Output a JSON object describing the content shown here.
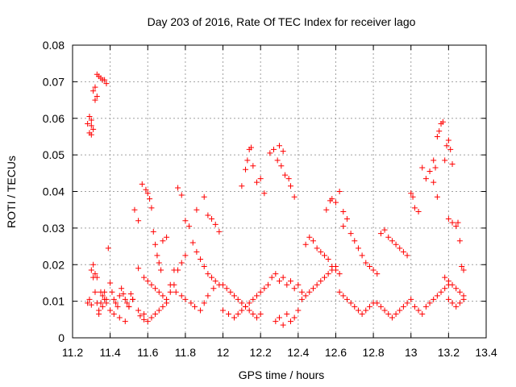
{
  "chart_data": {
    "type": "scatter",
    "title": "Day 203 of 2016, Rate Of TEC Index for receiver lago",
    "xlabel": "GPS time / hours",
    "ylabel": "ROTI / TECUs",
    "xlim": [
      11.2,
      13.4
    ],
    "ylim": [
      0,
      0.08
    ],
    "x_ticks": [
      "11.2",
      "11.4",
      "11.6",
      "11.8",
      "12",
      "12.2",
      "12.4",
      "12.6",
      "12.8",
      "13",
      "13.2",
      "13.4"
    ],
    "y_ticks": [
      "0",
      "0.01",
      "0.02",
      "0.03",
      "0.04",
      "0.05",
      "0.06",
      "0.07",
      "0.08"
    ],
    "grid": true,
    "marker": "+",
    "color": "#ff0000",
    "series": [
      {
        "name": "ROTI",
        "x": [
          11.28,
          11.29,
          11.3,
          11.3,
          11.31,
          11.31,
          11.32,
          11.32,
          11.33,
          11.33,
          11.34,
          11.34,
          11.35,
          11.35,
          11.36,
          11.36,
          11.37,
          11.37,
          11.38,
          11.38,
          11.31,
          11.32,
          11.33,
          11.34,
          11.35,
          11.36,
          11.37,
          11.38,
          11.33,
          11.32,
          11.28,
          11.29,
          11.3,
          11.29,
          11.3,
          11.31,
          11.3,
          11.39,
          11.4,
          11.41,
          11.42,
          11.43,
          11.44,
          11.45,
          11.46,
          11.47,
          11.48,
          11.49,
          11.5,
          11.51,
          11.52,
          11.4,
          11.42,
          11.45,
          11.48,
          11.5,
          11.52,
          11.55,
          11.58,
          11.53,
          11.55,
          11.57,
          11.59,
          11.6,
          11.61,
          11.62,
          11.63,
          11.64,
          11.65,
          11.66,
          11.67,
          11.68,
          11.7,
          11.55,
          11.58,
          11.6,
          11.62,
          11.64,
          11.66,
          11.68,
          11.7,
          11.72,
          11.74,
          11.56,
          11.58,
          11.6,
          11.62,
          11.64,
          11.66,
          11.68,
          11.7,
          11.72,
          11.74,
          11.76,
          11.78,
          11.8,
          11.82,
          11.84,
          11.86,
          11.88,
          11.9,
          11.92,
          11.94,
          11.96,
          11.98,
          11.75,
          11.78,
          11.8,
          11.83,
          11.85,
          11.88,
          11.9,
          11.92,
          11.95,
          11.76,
          11.78,
          11.8,
          11.86,
          11.9,
          11.92,
          11.94,
          11.96,
          11.98,
          12.0,
          12.02,
          12.04,
          12.06,
          12.08,
          12.1,
          12.12,
          12.14,
          12.16,
          12.18,
          12.2,
          12.22,
          12.24,
          12.0,
          12.03,
          12.06,
          12.08,
          12.1,
          12.12,
          12.14,
          12.16,
          12.18,
          12.2,
          12.1,
          12.12,
          12.13,
          12.14,
          12.15,
          12.16,
          12.18,
          12.2,
          12.22,
          12.25,
          12.27,
          12.29,
          12.3,
          12.31,
          12.32,
          12.33,
          12.35,
          12.36,
          12.38,
          12.26,
          12.28,
          12.3,
          12.32,
          12.34,
          12.36,
          12.38,
          12.4,
          12.42,
          12.28,
          12.3,
          12.32,
          12.34,
          12.36,
          12.38,
          12.4,
          12.42,
          12.44,
          12.46,
          12.48,
          12.5,
          12.52,
          12.54,
          12.56,
          12.58,
          12.6,
          12.44,
          12.46,
          12.48,
          12.5,
          12.52,
          12.54,
          12.56,
          12.58,
          12.6,
          12.62,
          12.55,
          12.57,
          12.58,
          12.6,
          12.62,
          12.64,
          12.62,
          12.64,
          12.66,
          12.68,
          12.7,
          12.72,
          12.74,
          12.76,
          12.78,
          12.8,
          12.64,
          12.66,
          12.68,
          12.7,
          12.72,
          12.74,
          12.76,
          12.78,
          12.8,
          12.82,
          12.82,
          12.84,
          12.86,
          12.88,
          12.9,
          12.92,
          12.94,
          12.96,
          12.98,
          13.0,
          12.84,
          12.86,
          12.88,
          12.9,
          12.92,
          12.94,
          12.96,
          12.98,
          13.0,
          13.01,
          13.02,
          13.04,
          13.06,
          13.08,
          13.1,
          13.12,
          13.14,
          13.02,
          13.04,
          13.06,
          13.08,
          13.1,
          13.12,
          13.14,
          13.16,
          13.18,
          13.2,
          13.12,
          13.13,
          13.14,
          13.15,
          13.16,
          13.17,
          13.18,
          13.19,
          13.2,
          13.21,
          13.22,
          13.2,
          13.22,
          13.24,
          13.25,
          13.26,
          13.27,
          13.28,
          13.18,
          13.2,
          13.22,
          13.24,
          13.26,
          13.28,
          13.2,
          13.22,
          13.24,
          13.26,
          13.28
        ],
        "y": [
          0.0095,
          0.0105,
          0.009,
          0.0185,
          0.02,
          0.0165,
          0.0175,
          0.0125,
          0.0095,
          0.0165,
          0.0075,
          0.0065,
          0.0125,
          0.0095,
          0.0115,
          0.0085,
          0.0125,
          0.0105,
          0.0095,
          0.0105,
          0.0675,
          0.065,
          0.072,
          0.0715,
          0.071,
          0.0705,
          0.0705,
          0.0695,
          0.066,
          0.0685,
          0.0585,
          0.0605,
          0.058,
          0.056,
          0.0595,
          0.057,
          0.0555,
          0.0245,
          0.015,
          0.0125,
          0.0105,
          0.0095,
          0.0085,
          0.0115,
          0.0135,
          0.012,
          0.0105,
          0.0095,
          0.0085,
          0.012,
          0.0105,
          0.0075,
          0.0065,
          0.0055,
          0.0045,
          0.0085,
          0.0105,
          0.0075,
          0.0065,
          0.035,
          0.032,
          0.042,
          0.0405,
          0.0395,
          0.038,
          0.0355,
          0.029,
          0.0255,
          0.0225,
          0.0205,
          0.0185,
          0.0265,
          0.0275,
          0.019,
          0.0165,
          0.0155,
          0.0145,
          0.0135,
          0.0125,
          0.0115,
          0.0105,
          0.0125,
          0.0145,
          0.006,
          0.005,
          0.0045,
          0.0055,
          0.0065,
          0.0075,
          0.0085,
          0.0095,
          0.0145,
          0.0185,
          0.041,
          0.039,
          0.032,
          0.0305,
          0.026,
          0.0235,
          0.0215,
          0.0195,
          0.0175,
          0.0165,
          0.0155,
          0.0145,
          0.0125,
          0.0115,
          0.0105,
          0.0095,
          0.0085,
          0.0075,
          0.0095,
          0.0115,
          0.0135,
          0.0185,
          0.0205,
          0.0225,
          0.035,
          0.0385,
          0.0335,
          0.0325,
          0.031,
          0.029,
          0.0145,
          0.0135,
          0.0125,
          0.0115,
          0.0105,
          0.0095,
          0.0085,
          0.0095,
          0.0105,
          0.0115,
          0.0125,
          0.0135,
          0.0145,
          0.0075,
          0.0065,
          0.0055,
          0.0065,
          0.0075,
          0.0085,
          0.0075,
          0.0065,
          0.0055,
          0.0065,
          0.0415,
          0.046,
          0.0485,
          0.0515,
          0.052,
          0.047,
          0.0425,
          0.0435,
          0.0395,
          0.0505,
          0.0515,
          0.0485,
          0.0525,
          0.047,
          0.051,
          0.0445,
          0.0435,
          0.0415,
          0.0385,
          0.0165,
          0.0175,
          0.0155,
          0.0165,
          0.0145,
          0.0155,
          0.0135,
          0.0145,
          0.0125,
          0.0045,
          0.0055,
          0.0035,
          0.0065,
          0.0045,
          0.0055,
          0.0075,
          0.0105,
          0.0115,
          0.0125,
          0.0135,
          0.0145,
          0.0155,
          0.0165,
          0.0175,
          0.0185,
          0.0195,
          0.0255,
          0.0275,
          0.0265,
          0.0245,
          0.0235,
          0.0225,
          0.0215,
          0.0195,
          0.0185,
          0.0175,
          0.035,
          0.0375,
          0.038,
          0.037,
          0.04,
          0.0345,
          0.0125,
          0.0115,
          0.0105,
          0.0095,
          0.0085,
          0.0075,
          0.0065,
          0.0075,
          0.0085,
          0.0095,
          0.0305,
          0.0325,
          0.0285,
          0.0265,
          0.0245,
          0.0225,
          0.0205,
          0.0195,
          0.0185,
          0.0175,
          0.0095,
          0.0085,
          0.0075,
          0.0065,
          0.0055,
          0.0065,
          0.0075,
          0.0085,
          0.0095,
          0.0105,
          0.0285,
          0.0295,
          0.0275,
          0.0265,
          0.0255,
          0.0245,
          0.0235,
          0.0225,
          0.0395,
          0.0385,
          0.0355,
          0.0345,
          0.0465,
          0.0435,
          0.0455,
          0.0425,
          0.0385,
          0.0085,
          0.0075,
          0.0065,
          0.0085,
          0.0095,
          0.0105,
          0.0115,
          0.0125,
          0.0135,
          0.0145,
          0.0485,
          0.0465,
          0.055,
          0.0565,
          0.0585,
          0.059,
          0.0485,
          0.0525,
          0.054,
          0.0515,
          0.0475,
          0.0325,
          0.0315,
          0.0305,
          0.0315,
          0.0265,
          0.0195,
          0.0185,
          0.0165,
          0.0155,
          0.0145,
          0.0135,
          0.0125,
          0.0115,
          0.0105,
          0.0095,
          0.0085,
          0.0095,
          0.0105
        ]
      }
    ]
  }
}
